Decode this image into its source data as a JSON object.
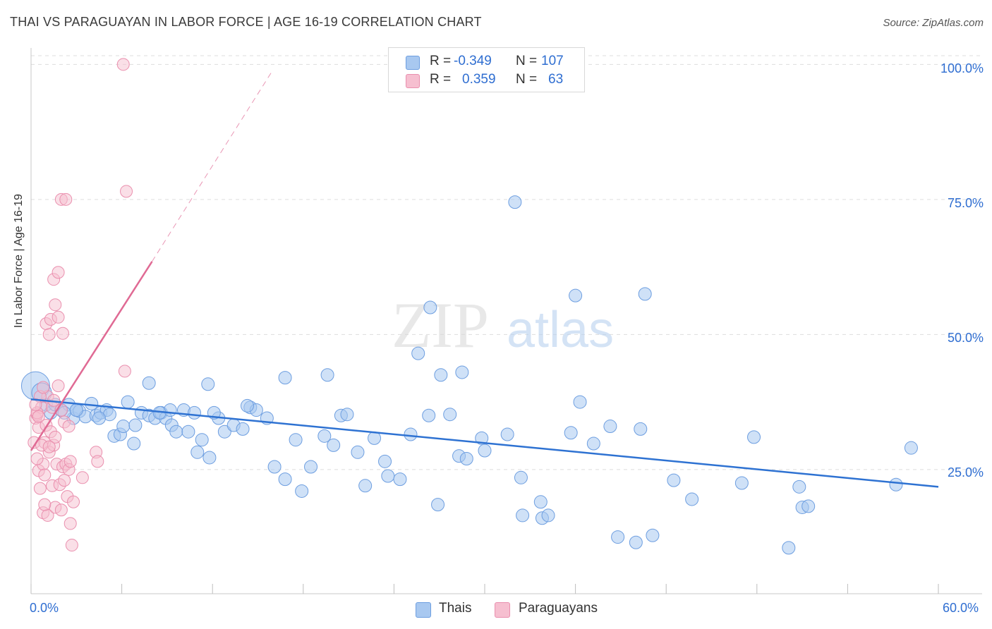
{
  "header": {
    "title": "THAI VS PARAGUAYAN IN LABOR FORCE | AGE 16-19 CORRELATION CHART",
    "source": "Source: ZipAtlas.com"
  },
  "legend": {
    "r_label": "R =",
    "n_label": "N =",
    "thais": {
      "r": "-0.349",
      "n": "107"
    },
    "paraguayans": {
      "r": "0.359",
      "n": "63"
    }
  },
  "watermark": {
    "zip": "ZIP",
    "atlas": "atlas"
  },
  "colors": {
    "thais_fill": "#a8c8f0",
    "thais_stroke": "#6d9ee0",
    "thais_line": "#2e72d2",
    "paraguayans_fill": "#f6bfd0",
    "paraguayans_stroke": "#ea8fae",
    "paraguayans_line": "#e06a94",
    "tick_text": "#2f6ed1",
    "grid": "#dddddd"
  },
  "chart_data": {
    "type": "scatter",
    "title": "THAI VS PARAGUAYAN IN LABOR FORCE | AGE 16-19 CORRELATION CHART",
    "xlabel": "",
    "ylabel": "In Labor Force | Age 16-19",
    "xlim": [
      0,
      60
    ],
    "ylim": [
      2,
      102
    ],
    "x_tick_labels": [
      "0.0%",
      "60.0%"
    ],
    "y_ticks": [
      25,
      50,
      75,
      100
    ],
    "y_tick_labels": [
      "25.0%",
      "50.0%",
      "75.0%",
      "100.0%"
    ],
    "grid": true,
    "legend_position": "bottom",
    "series": [
      {
        "name": "Thais",
        "r": -0.349,
        "n": 107,
        "trend": {
          "x0": 0,
          "y0": 38.0,
          "x1": 60,
          "y1": 21.8
        },
        "points": [
          [
            0.3,
            40.5,
            3
          ],
          [
            0.7,
            39.2,
            2
          ],
          [
            1.0,
            37.0,
            1
          ],
          [
            1.3,
            35.5,
            1
          ],
          [
            1.6,
            37.0,
            1
          ],
          [
            2.0,
            36.0,
            1
          ],
          [
            2.5,
            37.0,
            1
          ],
          [
            2.8,
            34.5,
            1
          ],
          [
            3.0,
            36.0,
            1
          ],
          [
            3.2,
            35.8,
            1
          ],
          [
            3.6,
            34.8,
            1
          ],
          [
            4.0,
            37.2,
            1
          ],
          [
            4.3,
            35.0,
            1
          ],
          [
            4.6,
            35.5,
            1
          ],
          [
            5.0,
            36.0,
            1
          ],
          [
            5.2,
            35.2,
            1
          ],
          [
            5.5,
            31.2,
            1
          ],
          [
            5.9,
            31.5,
            1
          ],
          [
            6.1,
            33.0,
            1
          ],
          [
            6.4,
            37.5,
            1
          ],
          [
            6.8,
            29.8,
            1
          ],
          [
            7.3,
            35.5,
            1
          ],
          [
            7.8,
            35.0,
            1
          ],
          [
            8.2,
            34.5,
            1
          ],
          [
            8.6,
            35.5,
            1
          ],
          [
            8.9,
            34.5,
            1
          ],
          [
            9.3,
            33.2,
            1
          ],
          [
            9.6,
            32.0,
            1
          ],
          [
            10.1,
            36.0,
            1
          ],
          [
            10.4,
            32.0,
            1
          ],
          [
            11.0,
            28.2,
            1
          ],
          [
            11.3,
            30.5,
            1
          ],
          [
            11.8,
            27.2,
            1
          ],
          [
            12.4,
            34.5,
            1
          ],
          [
            12.8,
            32.0,
            1
          ],
          [
            13.4,
            33.2,
            1
          ],
          [
            14.0,
            32.5,
            1
          ],
          [
            14.5,
            36.5,
            1
          ],
          [
            14.9,
            36.0,
            1
          ],
          [
            15.6,
            34.5,
            1
          ],
          [
            16.1,
            25.5,
            1
          ],
          [
            16.8,
            23.2,
            1
          ],
          [
            17.5,
            30.5,
            1
          ],
          [
            17.9,
            21.0,
            1
          ],
          [
            18.5,
            25.5,
            1
          ],
          [
            19.4,
            31.2,
            1
          ],
          [
            20.0,
            29.5,
            1
          ],
          [
            20.5,
            35.0,
            1
          ],
          [
            20.9,
            35.2,
            1
          ],
          [
            21.6,
            28.2,
            1
          ],
          [
            22.1,
            22.0,
            1
          ],
          [
            22.7,
            30.8,
            1
          ],
          [
            23.4,
            26.5,
            1
          ],
          [
            23.6,
            23.8,
            1
          ],
          [
            24.4,
            23.2,
            1
          ],
          [
            25.1,
            31.5,
            1
          ],
          [
            25.6,
            46.5,
            1
          ],
          [
            26.3,
            35.0,
            1
          ],
          [
            26.9,
            18.5,
            1
          ],
          [
            27.1,
            42.5,
            1
          ],
          [
            27.7,
            35.2,
            1
          ],
          [
            28.3,
            27.5,
            1
          ],
          [
            28.5,
            43.0,
            1
          ],
          [
            28.8,
            27.0,
            1
          ],
          [
            29.8,
            30.8,
            1
          ],
          [
            30.0,
            28.5,
            1
          ],
          [
            31.5,
            31.5,
            1
          ],
          [
            32.4,
            23.5,
            1
          ],
          [
            32.5,
            16.5,
            1
          ],
          [
            33.7,
            19.0,
            1
          ],
          [
            33.8,
            16.0,
            1
          ],
          [
            34.2,
            16.5,
            1
          ],
          [
            35.7,
            31.8,
            1
          ],
          [
            36.0,
            57.2,
            1
          ],
          [
            36.3,
            37.5,
            1
          ],
          [
            37.2,
            29.8,
            1
          ],
          [
            38.8,
            12.5,
            1
          ],
          [
            38.3,
            33.0,
            1
          ],
          [
            40.3,
            32.5,
            1
          ],
          [
            40.6,
            57.5,
            1
          ],
          [
            40.0,
            11.5,
            1
          ],
          [
            41.1,
            12.8,
            1
          ],
          [
            42.5,
            23.0,
            1
          ],
          [
            43.7,
            19.5,
            1
          ],
          [
            47.0,
            22.5,
            1
          ],
          [
            47.8,
            31.0,
            1
          ],
          [
            50.1,
            10.5,
            1
          ],
          [
            50.8,
            21.8,
            1
          ],
          [
            51.0,
            18.0,
            1
          ],
          [
            51.4,
            18.2,
            1
          ],
          [
            57.2,
            22.2,
            1
          ],
          [
            58.2,
            29.0,
            1
          ],
          [
            32.0,
            74.5,
            1
          ],
          [
            26.4,
            55.0,
            1
          ],
          [
            19.6,
            42.5,
            1
          ],
          [
            16.8,
            42.0,
            1
          ],
          [
            11.7,
            40.8,
            1
          ],
          [
            7.8,
            41.0,
            1
          ],
          [
            12.1,
            35.5,
            1
          ],
          [
            14.3,
            36.8,
            1
          ],
          [
            9.2,
            36.0,
            1
          ],
          [
            6.9,
            33.2,
            1
          ],
          [
            3.0,
            36.0,
            1
          ],
          [
            4.5,
            34.5,
            1
          ],
          [
            2.2,
            35.5,
            1
          ],
          [
            8.5,
            35.5,
            1
          ],
          [
            10.8,
            35.5,
            1
          ]
        ]
      },
      {
        "name": "Paraguayans",
        "r": 0.359,
        "n": 63,
        "trend": {
          "x0": 0,
          "y0": 28.5,
          "x1": 8.0,
          "y1": 63.5,
          "dash_to": {
            "x": 16.0,
            "y": 99.0
          }
        },
        "points": [
          [
            0.2,
            30.0
          ],
          [
            0.3,
            34.5
          ],
          [
            0.4,
            35.2
          ],
          [
            0.5,
            32.8
          ],
          [
            0.5,
            24.8
          ],
          [
            0.6,
            21.5
          ],
          [
            0.7,
            36.5
          ],
          [
            0.8,
            26.0
          ],
          [
            0.8,
            17.0
          ],
          [
            0.9,
            30.0
          ],
          [
            0.9,
            24.0
          ],
          [
            1.0,
            33.2
          ],
          [
            1.1,
            16.5
          ],
          [
            1.1,
            38.5
          ],
          [
            1.2,
            28.2
          ],
          [
            1.3,
            32.0
          ],
          [
            1.4,
            22.0
          ],
          [
            1.4,
            36.5
          ],
          [
            1.5,
            29.5
          ],
          [
            1.6,
            31.0
          ],
          [
            1.6,
            18.0
          ],
          [
            1.7,
            26.0
          ],
          [
            1.8,
            40.5
          ],
          [
            1.9,
            22.2
          ],
          [
            2.0,
            17.5
          ],
          [
            2.1,
            25.5
          ],
          [
            2.2,
            23.0
          ],
          [
            2.2,
            33.8
          ],
          [
            2.3,
            26.0
          ],
          [
            2.4,
            20.0
          ],
          [
            2.5,
            25.0
          ],
          [
            2.6,
            15.0
          ],
          [
            2.6,
            26.5
          ],
          [
            2.7,
            11.0
          ],
          [
            2.8,
            19.0
          ],
          [
            1.0,
            52.0
          ],
          [
            1.2,
            50.0
          ],
          [
            1.3,
            52.8
          ],
          [
            1.6,
            55.5
          ],
          [
            1.8,
            53.2
          ],
          [
            2.1,
            50.2
          ],
          [
            1.5,
            60.2
          ],
          [
            1.8,
            61.5
          ],
          [
            2.0,
            75.0
          ],
          [
            2.3,
            75.0
          ],
          [
            6.1,
            100.0
          ],
          [
            6.2,
            43.2
          ],
          [
            6.3,
            76.5
          ],
          [
            3.4,
            23.5
          ],
          [
            4.3,
            28.2
          ],
          [
            4.4,
            26.5
          ],
          [
            0.4,
            35.5
          ],
          [
            0.5,
            34.8
          ],
          [
            0.7,
            29.5
          ],
          [
            0.6,
            38.5
          ],
          [
            0.3,
            37.0
          ],
          [
            0.4,
            27.0
          ],
          [
            0.9,
            18.5
          ],
          [
            1.2,
            29.2
          ],
          [
            2.0,
            36.0
          ],
          [
            2.5,
            33.0
          ],
          [
            0.8,
            40.2
          ],
          [
            1.5,
            37.8
          ]
        ]
      }
    ]
  },
  "bottom_legend": {
    "thais": "Thais",
    "paraguayans": "Paraguayans"
  }
}
